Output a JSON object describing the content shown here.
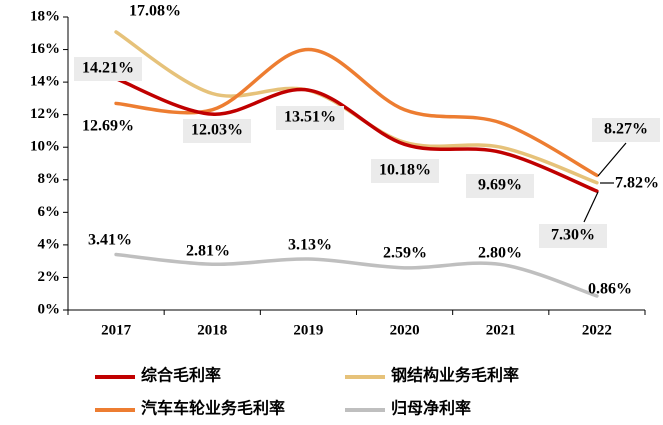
{
  "chart_data": {
    "type": "line",
    "categories": [
      "2017",
      "2018",
      "2019",
      "2020",
      "2021",
      "2022"
    ],
    "series": [
      {
        "name": "综合毛利率",
        "color": "#c00000",
        "values": [
          14.21,
          12.03,
          13.51,
          10.18,
          9.69,
          7.3
        ],
        "value_labels": [
          "14.21%",
          "12.03%",
          "13.51%",
          "10.18%",
          "9.69%",
          "7.30%"
        ]
      },
      {
        "name": "钢结构业务毛利率",
        "color": "#e6c27a",
        "values": [
          17.08,
          13.3,
          13.5,
          10.3,
          10.0,
          7.82
        ],
        "value_labels": [
          "17.08%",
          null,
          null,
          null,
          null,
          "7.82%"
        ]
      },
      {
        "name": "汽车车轮业务毛利率",
        "color": "#ed7d31",
        "values": [
          12.69,
          12.3,
          16.0,
          12.3,
          11.5,
          8.27
        ],
        "value_labels": [
          "12.69%",
          null,
          null,
          null,
          null,
          "8.27%"
        ]
      },
      {
        "name": "归母净利率",
        "color": "#bfbfbf",
        "values": [
          3.41,
          2.81,
          3.13,
          2.59,
          2.8,
          0.86
        ],
        "value_labels": [
          "3.41%",
          "2.81%",
          "3.13%",
          "2.59%",
          "2.80%",
          "0.86%"
        ]
      }
    ],
    "ylim": [
      0,
      18
    ],
    "yticks": [
      {
        "value": 0,
        "label": "0%"
      },
      {
        "value": 2,
        "label": "2%"
      },
      {
        "value": 4,
        "label": "4%"
      },
      {
        "value": 6,
        "label": "6%"
      },
      {
        "value": 8,
        "label": "8%"
      },
      {
        "value": 10,
        "label": "10%"
      },
      {
        "value": 12,
        "label": "12%"
      },
      {
        "value": 14,
        "label": "14%"
      },
      {
        "value": 16,
        "label": "16%"
      },
      {
        "value": 18,
        "label": "18%"
      }
    ]
  }
}
